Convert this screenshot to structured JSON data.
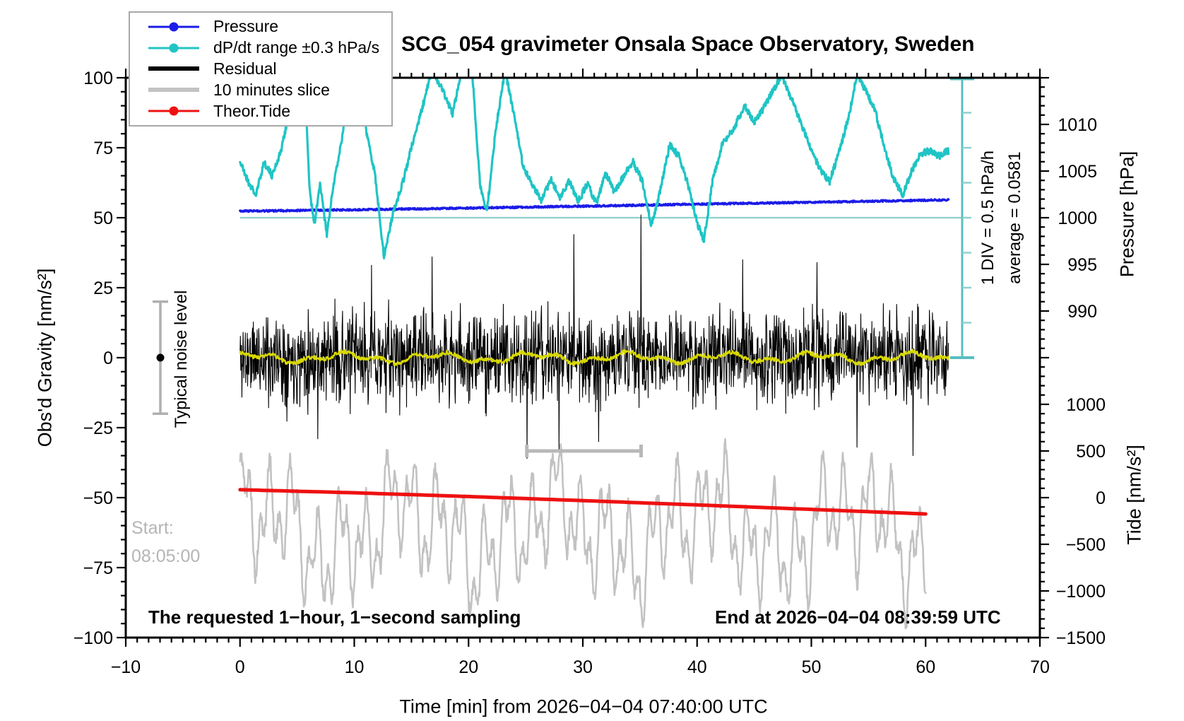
{
  "title": "SCG_054 gravimeter Onsala Space Observatory, Sweden",
  "legend": {
    "items": [
      {
        "label": "Pressure",
        "color": "#1c1ce8",
        "dot": true,
        "thick": false
      },
      {
        "label": "dP/dt range ±0.3 hPa/s",
        "color": "#20c4c4",
        "dot": true,
        "thick": false
      },
      {
        "label": "Residual",
        "color": "#000000",
        "dot": false,
        "thick": true
      },
      {
        "label": "10 minutes slice",
        "color": "#c2c2c2",
        "dot": false,
        "thick": true
      },
      {
        "label": "Theor.Tide",
        "color": "#ee1111",
        "dot": true,
        "thick": false
      }
    ]
  },
  "annotations": {
    "div_label": "1 DIV = 0.5 hPa/h",
    "average_label": "average = 0.0581",
    "noise_label": "Typical noise level",
    "start_label": "Start:",
    "start_time": "08:05:00",
    "sampling_note": "The requested 1−hour, 1−second sampling",
    "end_note": "End at 2026−04−04 08:39:59 UTC"
  },
  "axes": {
    "x": {
      "label": "Time [min] from 2026−04−04 07:40:00 UTC",
      "range": [
        -10,
        70
      ],
      "major": 10,
      "minor": 1,
      "values": [
        -10,
        0,
        10,
        20,
        30,
        40,
        50,
        60,
        70
      ],
      "tick_labels": [
        "−10",
        "0",
        "10",
        "20",
        "30",
        "40",
        "50",
        "60",
        "70"
      ]
    },
    "y_left": {
      "label": "Obs'd Gravity [nm/s²]",
      "range": [
        -100,
        100
      ],
      "major": 25,
      "minor": 5,
      "values": [
        100,
        75,
        50,
        25,
        0,
        -25,
        -50,
        -75,
        -100
      ],
      "tick_labels": [
        "100",
        "75",
        "50",
        "25",
        "0",
        "−25",
        "−50",
        "−75",
        "−100"
      ]
    },
    "y_right_pressure": {
      "label": "Pressure [hPa]",
      "values": [
        1010,
        1005,
        1000,
        995,
        990
      ],
      "tick_labels": [
        "1010",
        "1005",
        "1000",
        "995",
        "990"
      ]
    },
    "y_right_tide": {
      "label": "Tide [nm/s²]",
      "values": [
        1000,
        500,
        0,
        -500,
        -1000,
        -1500
      ],
      "tick_labels": [
        "1000",
        "500",
        "0",
        "−500",
        "−1000",
        "−1500"
      ]
    }
  },
  "chart_data": {
    "type": "line",
    "title": "SCG_054 gravimeter Onsala Space Observatory, Sweden",
    "xlabel": "Time [min] from 2026−04−04 07:40:00 UTC",
    "x_range": [
      -10,
      70
    ],
    "ylim_left_gravity": [
      -100,
      100
    ],
    "pressure_label_range_hPa": [
      990,
      1010
    ],
    "tide_label_range_nms2": [
      -1500,
      1000
    ],
    "grid": false,
    "legend_position": "top-left",
    "series": [
      {
        "name": "Pressure",
        "color": "#1c1ce8",
        "axis": "pressure_hPa",
        "unit": "hPa",
        "points": [
          [
            0,
            1000.7
          ],
          [
            10,
            1000.85
          ],
          [
            20,
            1001.03
          ],
          [
            30,
            1001.24
          ],
          [
            40,
            1001.45
          ],
          [
            50,
            1001.66
          ],
          [
            60,
            1001.87
          ],
          [
            62,
            1001.9
          ]
        ],
        "jitter": 0.08
      },
      {
        "name": "dP/dt range ±0.3 hPa/s",
        "color": "#20c4c4",
        "axis": "gravity_display_units",
        "note": "wildly oscillating curve, peaks clipped at top of frame (value 100)",
        "keypoints": [
          [
            0,
            70
          ],
          [
            0.7,
            63
          ],
          [
            1.4,
            58
          ],
          [
            2.1,
            70
          ],
          [
            2.8,
            65
          ],
          [
            3.6,
            74
          ],
          [
            4.3,
            88
          ],
          [
            4.8,
            103
          ],
          [
            5.6,
            103
          ],
          [
            6.1,
            60
          ],
          [
            6.5,
            47
          ],
          [
            7,
            62
          ],
          [
            7.6,
            44
          ],
          [
            8.2,
            62
          ],
          [
            9,
            80
          ],
          [
            9.7,
            103
          ],
          [
            10.4,
            96
          ],
          [
            11,
            82
          ],
          [
            11.8,
            66
          ],
          [
            12.6,
            36
          ],
          [
            13.4,
            52
          ],
          [
            14.2,
            62
          ],
          [
            15,
            75
          ],
          [
            16,
            90
          ],
          [
            16.8,
            103
          ],
          [
            17.8,
            95
          ],
          [
            18.6,
            87
          ],
          [
            19.4,
            103
          ],
          [
            20.3,
            103
          ],
          [
            21,
            62
          ],
          [
            21.6,
            52
          ],
          [
            22.4,
            82
          ],
          [
            23.2,
            103
          ],
          [
            24,
            86
          ],
          [
            24.8,
            68
          ],
          [
            25.6,
            62
          ],
          [
            26.4,
            56
          ],
          [
            27.2,
            64
          ],
          [
            28,
            57
          ],
          [
            28.8,
            63
          ],
          [
            29.6,
            56
          ],
          [
            30.4,
            62
          ],
          [
            31.2,
            55
          ],
          [
            32,
            66
          ],
          [
            32.8,
            59
          ],
          [
            33.6,
            65
          ],
          [
            34.4,
            70
          ],
          [
            35.2,
            63
          ],
          [
            36,
            47
          ],
          [
            36.8,
            60
          ],
          [
            37.6,
            76
          ],
          [
            38.4,
            72
          ],
          [
            39.2,
            62
          ],
          [
            40,
            48
          ],
          [
            40.6,
            42
          ],
          [
            41.4,
            64
          ],
          [
            42.2,
            76
          ],
          [
            43.2,
            82
          ],
          [
            44.2,
            90
          ],
          [
            45,
            84
          ],
          [
            45.8,
            89
          ],
          [
            46.6,
            95
          ],
          [
            47.4,
            101
          ],
          [
            48.2,
            93
          ],
          [
            49,
            85
          ],
          [
            50,
            74
          ],
          [
            50.8,
            67
          ],
          [
            51.6,
            63
          ],
          [
            52.4,
            73
          ],
          [
            53.2,
            85
          ],
          [
            54,
            101
          ],
          [
            54.8,
            95
          ],
          [
            55.6,
            88
          ],
          [
            56.4,
            75
          ],
          [
            57.2,
            64
          ],
          [
            58,
            58
          ],
          [
            58.8,
            67
          ],
          [
            59.6,
            73
          ],
          [
            60.4,
            74
          ],
          [
            61.2,
            72
          ],
          [
            62,
            74
          ]
        ]
      },
      {
        "name": "Residual",
        "color": "#000000",
        "axis": "gravity_nms2",
        "noise": {
          "seed": 11,
          "n": 1860,
          "t_range": [
            0,
            62
          ],
          "scale": 16,
          "mean": 0,
          "typical_band": [
            -22,
            22
          ],
          "spikes": [
            [
              6.8,
              -29
            ],
            [
              11.5,
              33
            ],
            [
              16.8,
              36
            ],
            [
              25.1,
              -36
            ],
            [
              27.9,
              -33
            ],
            [
              29.2,
              44
            ],
            [
              31.4,
              -30
            ],
            [
              35.1,
              51
            ],
            [
              44,
              35
            ],
            [
              50.5,
              34
            ],
            [
              54,
              -32
            ],
            [
              58.9,
              -35
            ]
          ]
        }
      },
      {
        "name": "Residual smoothed (yellow overlay)",
        "color": "#d8d800",
        "axis": "gravity_nms2",
        "description": "slowly wiggling line near 0 over t = 0..62 min, amplitude about ±2"
      },
      {
        "name": "10 minutes slice",
        "color": "#c2c2c2",
        "axis": "gravity_display_units",
        "slice": {
          "seed": 5,
          "center": -62,
          "t_range": [
            0,
            60
          ],
          "envelope": [
            -99,
            -21
          ],
          "description": "fast oscillation, ~0.85 min dominant period"
        }
      },
      {
        "name": "Theor.Tide",
        "color": "#ee1111",
        "axis": "tide_nms2",
        "unit": "nm/s²",
        "points": [
          [
            0,
            85
          ],
          [
            10,
            52
          ],
          [
            20,
            12
          ],
          [
            30,
            -32
          ],
          [
            40,
            -78
          ],
          [
            50,
            -126
          ],
          [
            60,
            -175
          ]
        ]
      }
    ],
    "annotations_data": {
      "pressure_baseline_hPa": 1000,
      "dp_scalebar": {
        "div_value": "0.5 hPa/h",
        "divisions": 8,
        "average": 0.0581
      },
      "noise_bar_gravity_nms2": [
        -20,
        20
      ],
      "slice_bracket_minutes": [
        25.1,
        35.1
      ]
    }
  }
}
